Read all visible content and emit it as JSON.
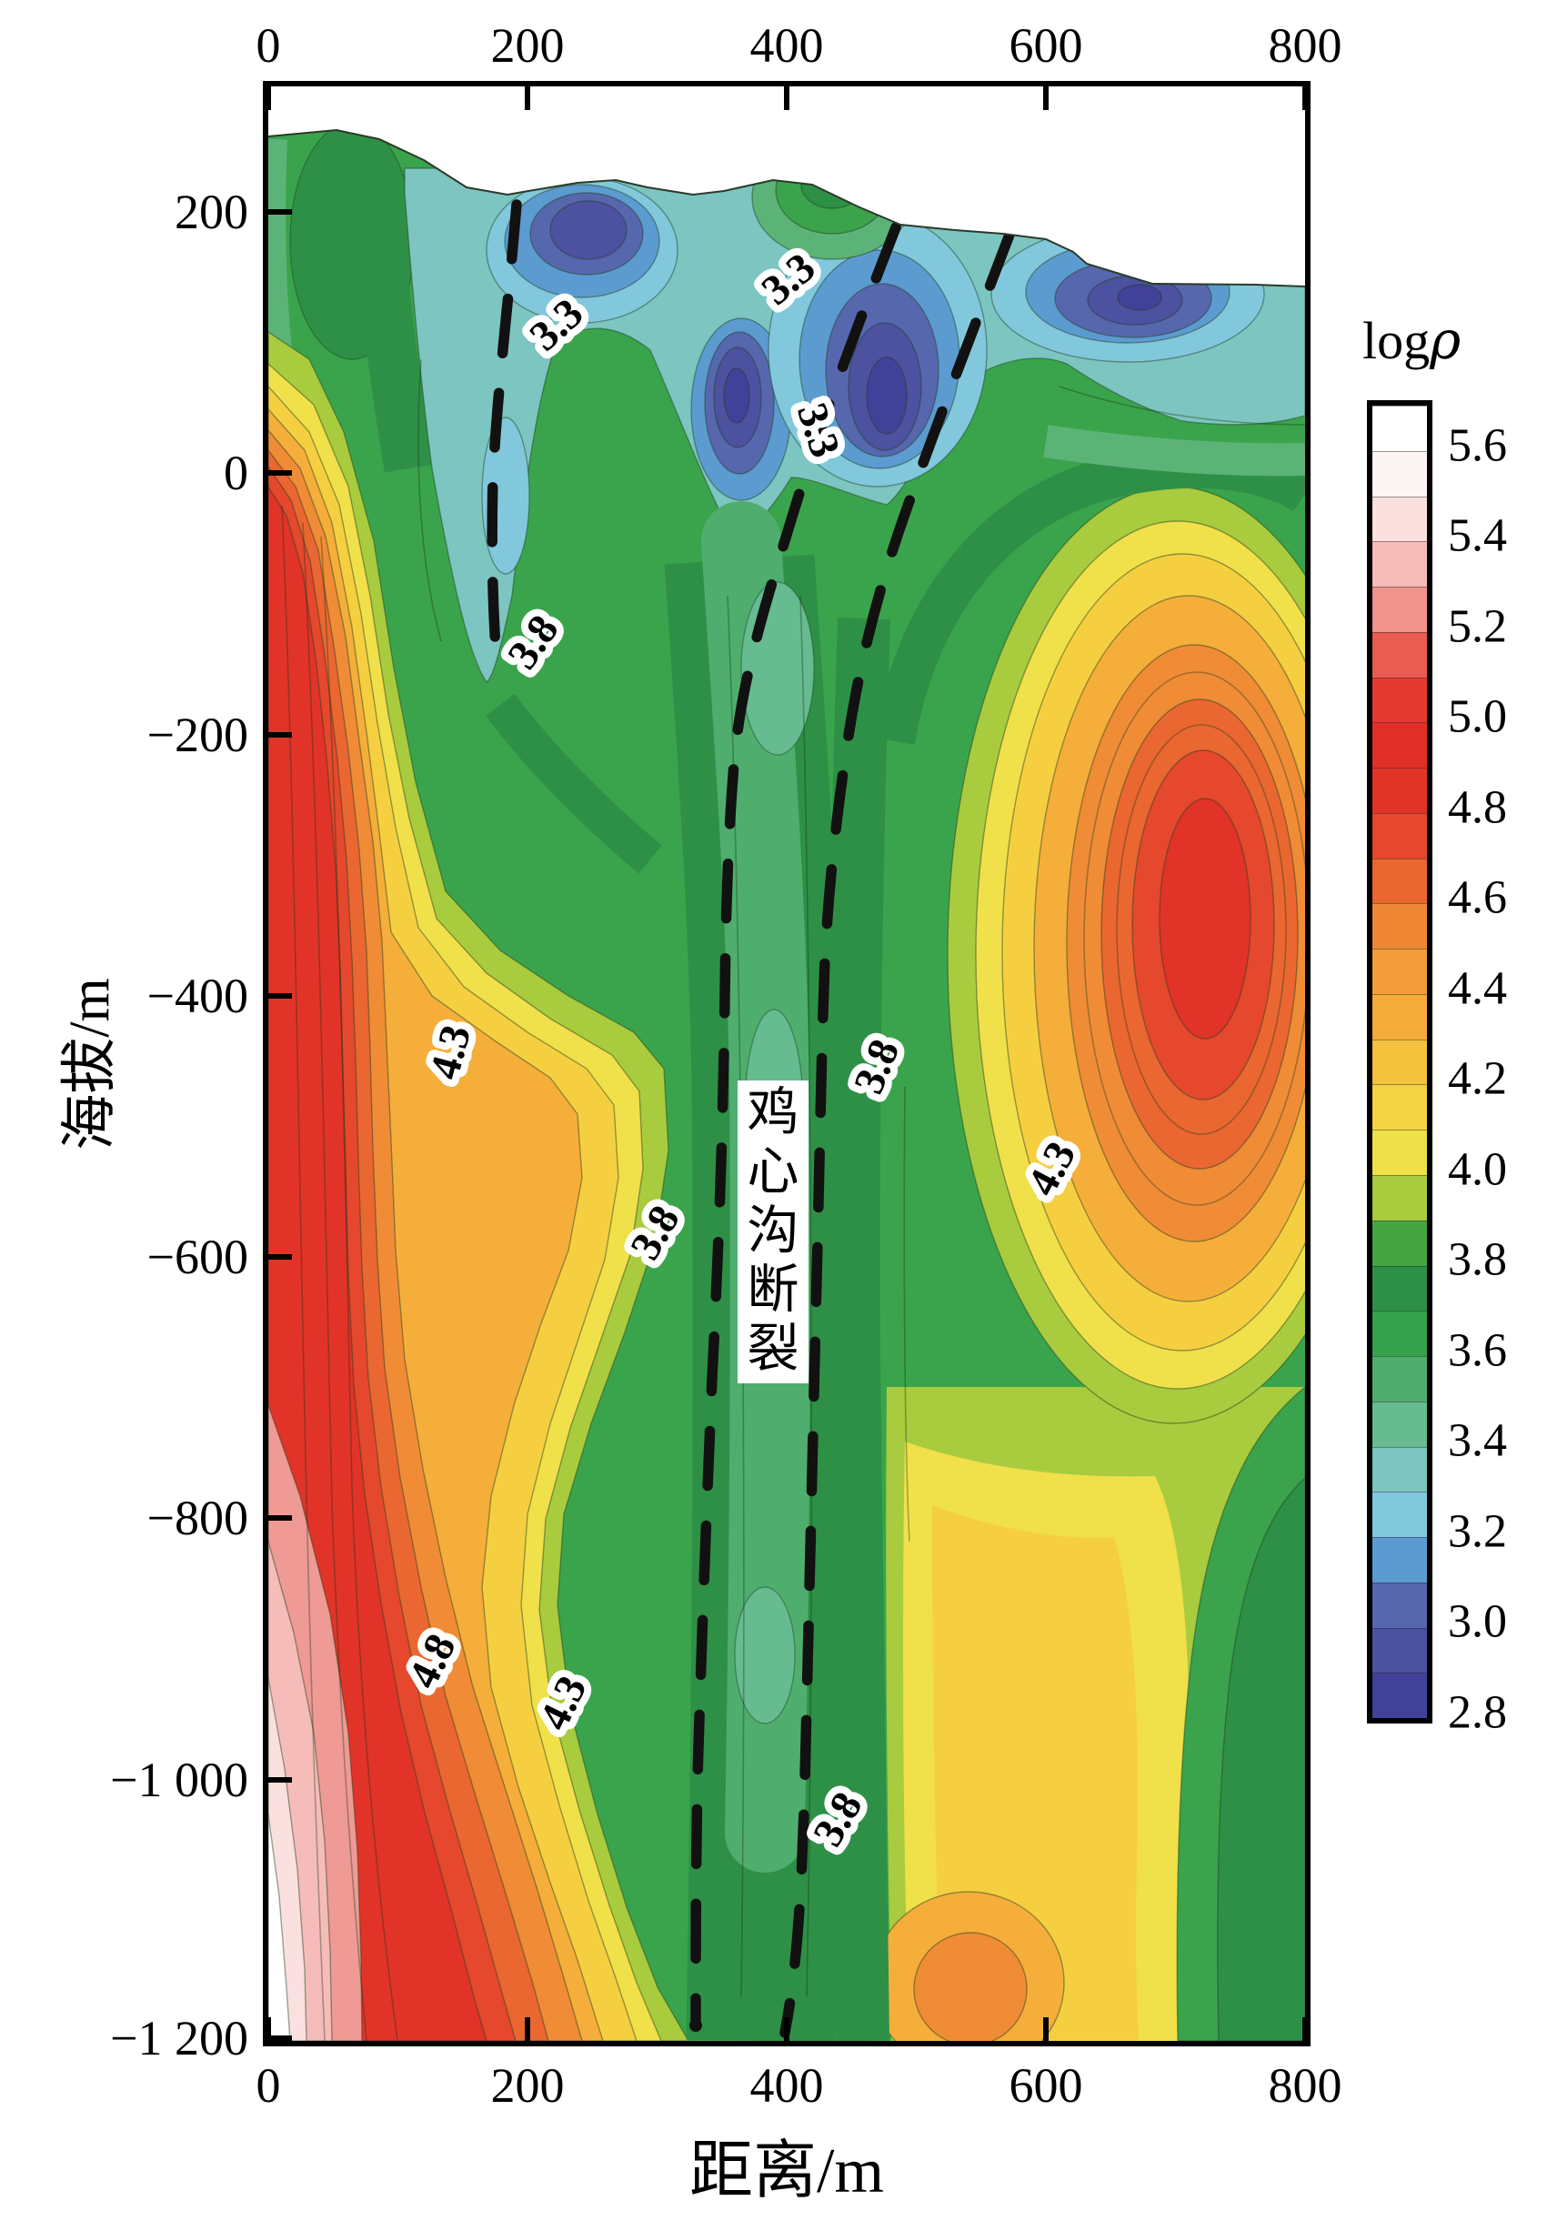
{
  "figure": {
    "kind": "2D resistivity inversion cross-section (filled contour plot)",
    "above_surface": "white (masked above topography)"
  },
  "axes": {
    "x": {
      "label": "距离/m",
      "range_m": [
        0,
        800
      ],
      "ticks": [
        0,
        200,
        400,
        600,
        800
      ],
      "tick_labels": [
        "0",
        "200",
        "400",
        "600",
        "800"
      ],
      "shown_on": "top and bottom"
    },
    "y": {
      "label": "海拔/m",
      "range_m": [
        -1200,
        296
      ],
      "ticks": [
        200,
        0,
        -200,
        -400,
        -600,
        -800,
        -1000,
        -1200
      ],
      "tick_labels": [
        "200",
        "0",
        "−200",
        "−400",
        "−600",
        "−800",
        "−1 000",
        "−1 200"
      ]
    }
  },
  "colorbar": {
    "title": "logρ",
    "value_min": 2.8,
    "value_max": 5.7,
    "segment_step": 0.1,
    "tick_labels": [
      "5.6",
      "5.4",
      "5.2",
      "5.0",
      "4.8",
      "4.6",
      "4.4",
      "4.2",
      "4.0",
      "3.8",
      "3.6",
      "3.4",
      "3.2",
      "3.0",
      "2.8"
    ],
    "tick_values": [
      5.6,
      5.4,
      5.2,
      5.0,
      4.8,
      4.6,
      4.4,
      4.2,
      4.0,
      3.8,
      3.6,
      3.4,
      3.2,
      3.0,
      2.8
    ],
    "colors_top_to_bottom": [
      "#ffffff",
      "#fdf4f4",
      "#fbe0e0",
      "#f6bcba",
      "#f0938d",
      "#ea5c51",
      "#e43a30",
      "#e02f26",
      "#e23329",
      "#e5482c",
      "#ea6731",
      "#ef8735",
      "#f29d39",
      "#f4ab3a",
      "#f5c23e",
      "#f3d243",
      "#efe04a",
      "#a9cb3e",
      "#45a542",
      "#2e9046",
      "#35a14c",
      "#4fae6e",
      "#66bb90",
      "#7cc5c0",
      "#82c8dc",
      "#5b9bd0",
      "#5767ae",
      "#4c51a0",
      "#42419a"
    ]
  },
  "chart_data": {
    "type": "heatmap",
    "quantity": "logρ (log10 resistivity)",
    "xlabel": "距离/m",
    "ylabel": "海拔/m",
    "xlim": [
      0,
      800
    ],
    "ylim": [
      -1200,
      296
    ],
    "colorbar_range": [
      2.8,
      5.7
    ],
    "contour_interval": 0.1,
    "contour_labels": [
      {
        "value": "3.3",
        "x_m": 222,
        "elev_m": 114,
        "rot_deg": -42
      },
      {
        "value": "3.3",
        "x_m": 401,
        "elev_m": 149,
        "rot_deg": -40
      },
      {
        "value": "3.3",
        "x_m": 425,
        "elev_m": 33,
        "rot_deg": 72
      },
      {
        "value": "3.8",
        "x_m": 204,
        "elev_m": -129,
        "rot_deg": -55
      },
      {
        "value": "4.3",
        "x_m": 140,
        "elev_m": -443,
        "rot_deg": -75
      },
      {
        "value": "3.8",
        "x_m": 469,
        "elev_m": -454,
        "rot_deg": -68
      },
      {
        "value": "4.3",
        "x_m": 604,
        "elev_m": -532,
        "rot_deg": -62
      },
      {
        "value": "3.8",
        "x_m": 298,
        "elev_m": -581,
        "rot_deg": -60
      },
      {
        "value": "4.8",
        "x_m": 126,
        "elev_m": -909,
        "rot_deg": -64
      },
      {
        "value": "4.3",
        "x_m": 227,
        "elev_m": -941,
        "rot_deg": -64
      },
      {
        "value": "3.8",
        "x_m": 439,
        "elev_m": -1030,
        "rot_deg": -60
      }
    ],
    "fault": {
      "name": "鸡心沟断裂",
      "style": "thick black dashed traces",
      "traces": 3,
      "description": "two long dashed traces bounding a low-resistivity channel from the surface (x≈490–560 m) converging downward to x≈330–400 m at −1200 m, plus a short trace at x≈190–180 m near the surface"
    },
    "regions": [
      {
        "area": "left flank x 0–250 m",
        "character": "high resistivity, near-vertical banded gradient logρ 4.0→5.6 toward lower left; pink/white logρ>5.2 below ≈ −850 m at x<80 m"
      },
      {
        "area": "central channel between faults",
        "character": "low resistivity logρ≈3.4–3.8 vertical green/teal channel along the fault zone down to −1200 m"
      },
      {
        "area": "near surface 100–800 m",
        "character": "blue pockets logρ≈2.8–3.3; deepest cores near x≈250 m (+150 m), x≈390 m (−40 m), x≈480 m (+25 m), x≈670 m (+140 m)"
      },
      {
        "area": "right body x 530–800 m",
        "character": "closed high-resistivity dome centered ≈(690 m, −350 m) with red core logρ≈4.8–5.0"
      },
      {
        "area": "bottom right",
        "character": "logρ≈3.6–4.4, small orange lens ≈(540 m, −1100 m), green corner near x≈800 m below −800 m"
      }
    ]
  }
}
